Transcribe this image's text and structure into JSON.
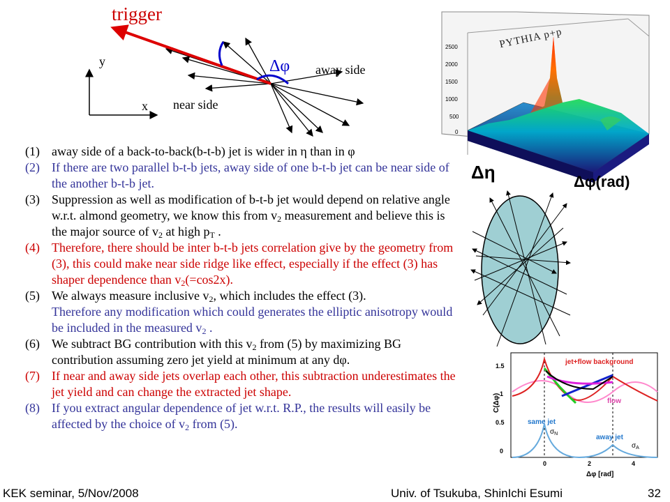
{
  "diagram": {
    "trigger": "trigger",
    "y_axis": "y",
    "x_axis": "x",
    "near_side": "near side",
    "away_side": "away side",
    "delta_phi": "Δφ"
  },
  "list": [
    {
      "num": "(1)",
      "color": "#000000",
      "parts": [
        "away side of a back-to-back(b-t-b) jet is wider in η than in φ"
      ]
    },
    {
      "num": "(2)",
      "color": "#333399",
      "parts": [
        "If there are two parallel b-t-b jets, away side of one b-t-b jet can be near side of the another b-t-b jet."
      ]
    },
    {
      "num": "(3)",
      "color": "#000000",
      "parts": [
        "Suppression as well as modification of b-t-b jet would depend on relative angle w.r.t. almond geometry, we know this from v",
        "2",
        " measurement and believe this is the major source of v",
        "2",
        " at high p",
        "T",
        " ."
      ]
    },
    {
      "num": "(4)",
      "color": "#cc0000",
      "parts": [
        "Therefore, there should be inter b-t-b jets correlation give by the geometry from (3), this could make near side ridge like effect, especially if the effect (3) has shaper dependence than v",
        "2",
        "(=cos2x)."
      ]
    },
    {
      "num": "(5)",
      "color": "#000000",
      "parts": [
        "We always measure inclusive v",
        "2",
        ", which includes the effect (3)."
      ],
      "cont_color": "#333399",
      "cont": [
        "Therefore any modification which could generates the elliptic anisotropy would be included in the measured v",
        "2",
        " ."
      ]
    },
    {
      "num": "(6)",
      "color": "#000000",
      "parts": [
        "We subtract BG contribution with this v",
        "2",
        " from (5) by maximizing BG contribution assuming zero jet yield at minimum at any dφ."
      ]
    },
    {
      "num": "(7)",
      "color": "#cc0000",
      "parts": [
        "If near and away side jets overlap each other, this subtraction underestimates the jet yield and can change the extracted jet shape."
      ]
    },
    {
      "num": "(8)",
      "color": "#333399",
      "parts": [
        "If you extract angular dependence of jet w.r.t. R.P., the results will easily be affected by the choice of v",
        "2",
        " from (5)."
      ]
    }
  ],
  "lego_plot": {
    "label": "PYTHIA p+p",
    "z_ticks": [
      "2500",
      "2000",
      "1500",
      "1000",
      "500",
      "0"
    ],
    "x_axis": "Δη",
    "y_axis": "Δφ(rad)"
  },
  "correlation_plot": {
    "y_label": "C(Δφ)",
    "x_label": "Δφ [rad]",
    "y_ticks": [
      "1.5",
      "1",
      "0.5",
      "0"
    ],
    "x_ticks": [
      "0",
      "2",
      "4"
    ],
    "labels": {
      "background": "jet+flow background",
      "flow": "flow",
      "same_jet": "same jet",
      "away_jet": "away jet",
      "sigma_n": "σ",
      "sigma_n_sub": "N",
      "sigma_a": "σ",
      "sigma_a_sub": "A"
    }
  },
  "footer": {
    "left": "KEK seminar, 5/Nov/2008",
    "middle": "Univ. of Tsukuba, ShinIchi Esumi",
    "page": "32"
  }
}
